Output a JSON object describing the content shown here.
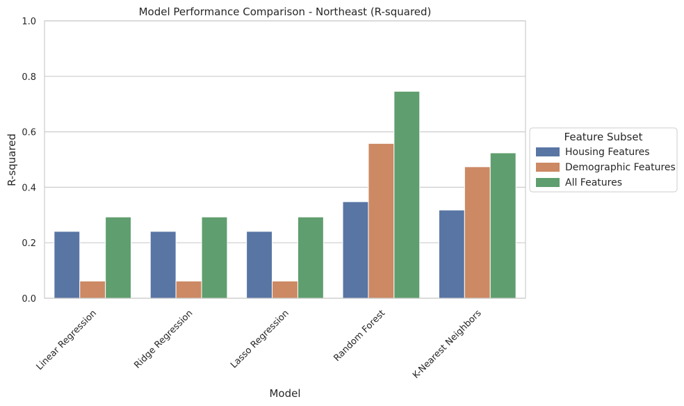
{
  "chart_data": {
    "type": "bar",
    "title": "Model Performance Comparison - Northeast (R-squared)",
    "xlabel": "Model",
    "ylabel": "R-squared",
    "ylim": [
      0,
      1.0
    ],
    "yticks": [
      "0.0",
      "0.2",
      "0.4",
      "0.6",
      "0.8",
      "1.0"
    ],
    "grid": true,
    "legend_position": "right",
    "legend_title": "Feature Subset",
    "categories": [
      "Linear Regression",
      "Ridge Regression",
      "Lasso Regression",
      "Random Forest",
      "K-Nearest Neighbors"
    ],
    "series": [
      {
        "name": "Housing Features",
        "color": "#5875a4",
        "values": [
          0.241,
          0.241,
          0.241,
          0.348,
          0.318
        ]
      },
      {
        "name": "Demographic Features",
        "color": "#cc8963",
        "values": [
          0.062,
          0.062,
          0.062,
          0.558,
          0.474
        ]
      },
      {
        "name": "All Features",
        "color": "#5f9e6e",
        "values": [
          0.293,
          0.293,
          0.293,
          0.746,
          0.524
        ]
      }
    ]
  }
}
